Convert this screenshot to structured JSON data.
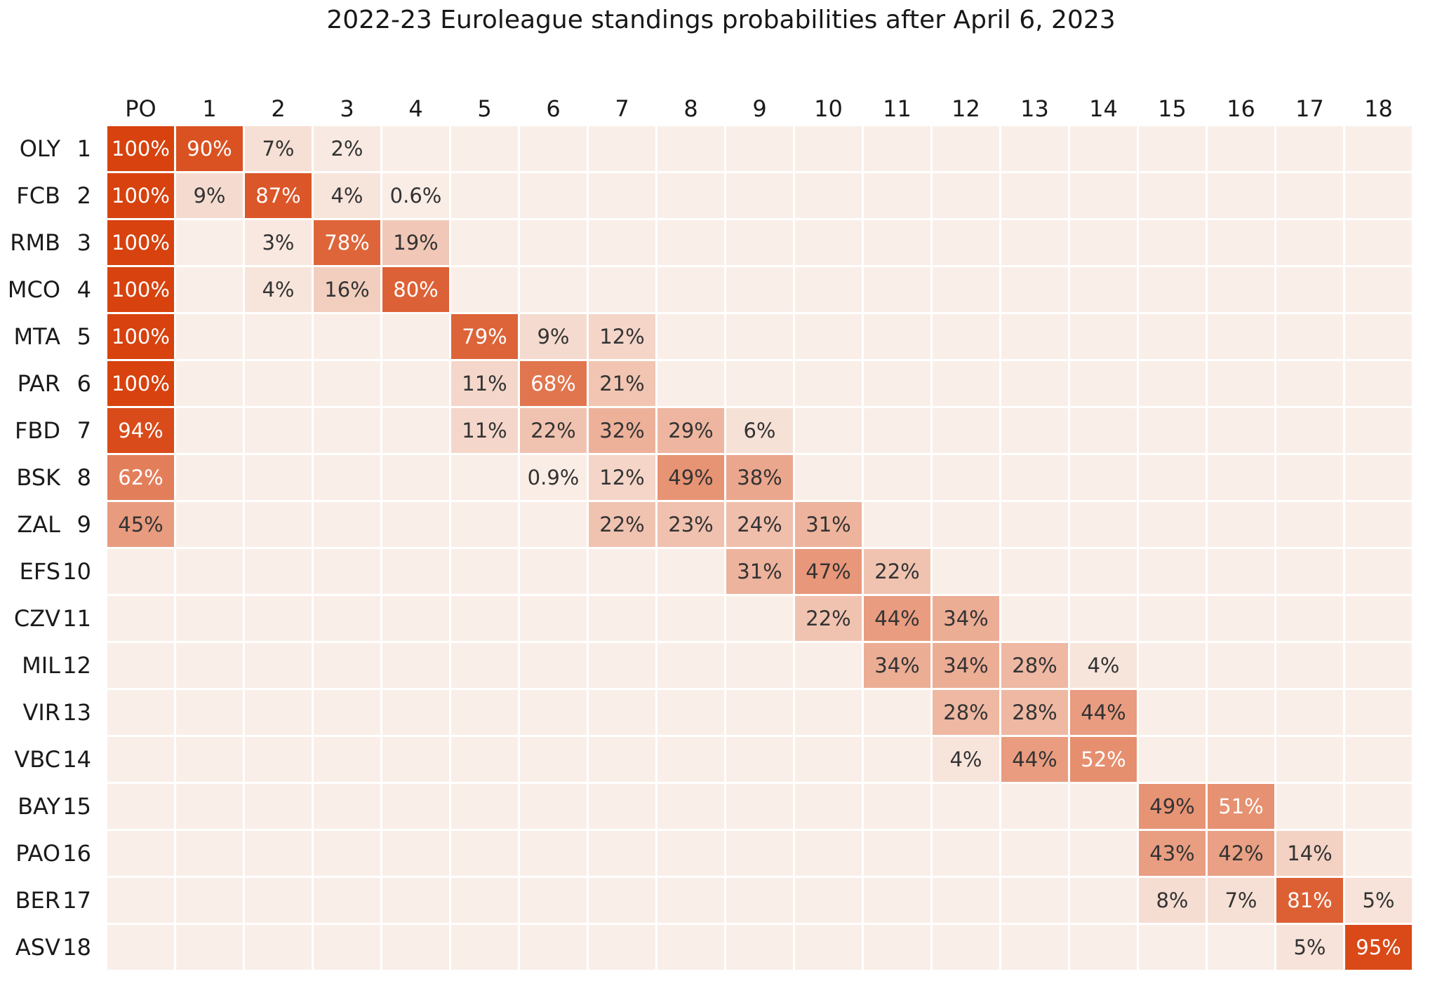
{
  "title": "2022-23 Euroleague standings probabilities after April 6, 2023",
  "colors": {
    "background": "#ffffff",
    "grid_gap": "#ffffff",
    "cell_zero": "#f9efe8",
    "cell_max": "#d7420e",
    "cell_text_dark": "#333333",
    "cell_text_light": "#ffffff",
    "label_text": "#1a1a1a",
    "title_text": "#181818"
  },
  "chart_data": {
    "type": "heatmap",
    "title": "2022-23 Euroleague standings probabilities after April 6, 2023",
    "unit": "%",
    "value_range": [
      0,
      100
    ],
    "light_text_threshold": 50,
    "legend": "none",
    "columns": [
      "PO",
      "1",
      "2",
      "3",
      "4",
      "5",
      "6",
      "7",
      "8",
      "9",
      "10",
      "11",
      "12",
      "13",
      "14",
      "15",
      "16",
      "17",
      "18"
    ],
    "rows": [
      {
        "team": "OLY",
        "rank": "1",
        "values": {
          "PO": 100,
          "1": 90,
          "2": 7,
          "3": 2
        }
      },
      {
        "team": "FCB",
        "rank": "2",
        "values": {
          "PO": 100,
          "1": 9,
          "2": 87,
          "3": 4,
          "4": 0.6
        }
      },
      {
        "team": "RMB",
        "rank": "3",
        "values": {
          "PO": 100,
          "2": 3,
          "3": 78,
          "4": 19
        }
      },
      {
        "team": "MCO",
        "rank": "4",
        "values": {
          "PO": 100,
          "2": 4,
          "3": 16,
          "4": 80
        }
      },
      {
        "team": "MTA",
        "rank": "5",
        "values": {
          "PO": 100,
          "5": 79,
          "6": 9,
          "7": 12
        }
      },
      {
        "team": "PAR",
        "rank": "6",
        "values": {
          "PO": 100,
          "5": 11,
          "6": 68,
          "7": 21
        }
      },
      {
        "team": "FBD",
        "rank": "7",
        "values": {
          "PO": 94,
          "5": 11,
          "6": 22,
          "7": 32,
          "8": 29,
          "9": 6
        }
      },
      {
        "team": "BSK",
        "rank": "8",
        "values": {
          "PO": 62,
          "6": 0.9,
          "7": 12,
          "8": 49,
          "9": 38
        }
      },
      {
        "team": "ZAL",
        "rank": "9",
        "values": {
          "PO": 45,
          "7": 22,
          "8": 23,
          "9": 24,
          "10": 31
        }
      },
      {
        "team": "EFS",
        "rank": "10",
        "values": {
          "9": 31,
          "10": 47,
          "11": 22
        }
      },
      {
        "team": "CZV",
        "rank": "11",
        "values": {
          "10": 22,
          "11": 44,
          "12": 34
        }
      },
      {
        "team": "MIL",
        "rank": "12",
        "values": {
          "11": 34,
          "12": 34,
          "13": 28,
          "14": 4
        }
      },
      {
        "team": "VIR",
        "rank": "13",
        "values": {
          "12": 28,
          "13": 28,
          "14": 44
        }
      },
      {
        "team": "VBC",
        "rank": "14",
        "values": {
          "12": 4,
          "13": 44,
          "14": 52
        }
      },
      {
        "team": "BAY",
        "rank": "15",
        "values": {
          "15": 49,
          "16": 51
        }
      },
      {
        "team": "PAO",
        "rank": "16",
        "values": {
          "15": 43,
          "16": 42,
          "17": 14
        }
      },
      {
        "team": "BER",
        "rank": "17",
        "values": {
          "15": 8,
          "16": 7,
          "17": 81,
          "18": 5
        }
      },
      {
        "team": "ASV",
        "rank": "18",
        "values": {
          "17": 5,
          "18": 95
        }
      }
    ]
  }
}
